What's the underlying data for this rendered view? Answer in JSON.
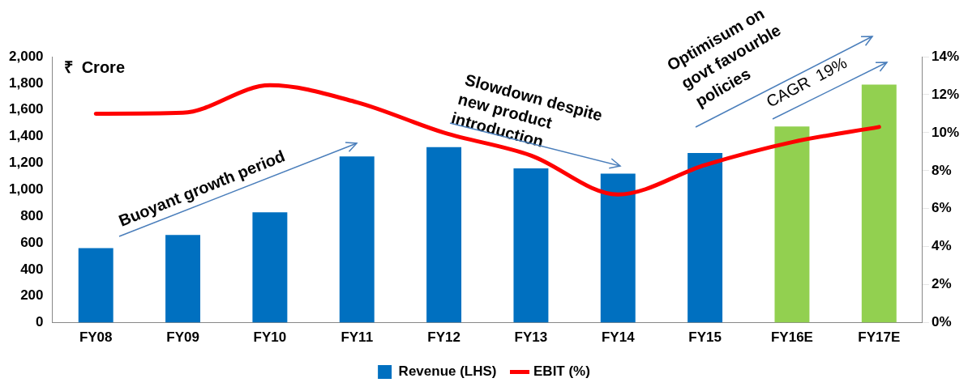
{
  "chart_data": {
    "type": "bar",
    "ylabel": "₹  Crore",
    "categories": [
      "FY08",
      "FY09",
      "FY10",
      "FY11",
      "FY12",
      "FY13",
      "FY14",
      "FY15",
      "FY16E",
      "FY17E"
    ],
    "series": [
      {
        "name": "Revenue (LHS)",
        "colors": [
          "#0070c0",
          "#0070c0",
          "#0070c0",
          "#0070c0",
          "#0070c0",
          "#0070c0",
          "#0070c0",
          "#0070c0",
          "#92d050",
          "#92d050"
        ],
        "values": [
          560,
          660,
          830,
          1250,
          1320,
          1160,
          1120,
          1275,
          1475,
          1790
        ]
      },
      {
        "name": "EBIT (%)",
        "type": "line",
        "axis": "y2",
        "color": "#ff0000",
        "values": [
          11.0,
          11.05,
          12.5,
          11.6,
          10.0,
          8.8,
          6.75,
          8.3,
          9.5,
          10.3
        ]
      }
    ],
    "ylim": [
      0,
      2000
    ],
    "yticks": [
      {
        "value": 0,
        "label": "0"
      },
      {
        "value": 200,
        "label": "200"
      },
      {
        "value": 400,
        "label": "400"
      },
      {
        "value": 600,
        "label": "600"
      },
      {
        "value": 800,
        "label": "800"
      },
      {
        "value": 1000,
        "label": "1,000"
      },
      {
        "value": 1200,
        "label": "1,200"
      },
      {
        "value": 1400,
        "label": "1,400"
      },
      {
        "value": 1600,
        "label": "1,600"
      },
      {
        "value": 1800,
        "label": "1,800"
      },
      {
        "value": 2000,
        "label": "2,000"
      }
    ],
    "y2lim": [
      0,
      14
    ],
    "y2ticks": [
      {
        "value": 0,
        "label": "0%"
      },
      {
        "value": 2,
        "label": "2%"
      },
      {
        "value": 4,
        "label": "4%"
      },
      {
        "value": 6,
        "label": "6%"
      },
      {
        "value": 8,
        "label": "8%"
      },
      {
        "value": 10,
        "label": "10%"
      },
      {
        "value": 12,
        "label": "12%"
      },
      {
        "value": 14,
        "label": "14%"
      }
    ],
    "annotations": [
      "Buoyant growth period",
      {
        "text": "Slowdown despite\nnew product\nintroduction",
        "x": "FY14",
        "y": 1120
      },
      "Optimisum on\ngovt favourble\npolicies",
      "CAGR  19%"
    ],
    "grid": false,
    "legend": "bottom",
    "marker": "none",
    "line_style": "solid"
  }
}
